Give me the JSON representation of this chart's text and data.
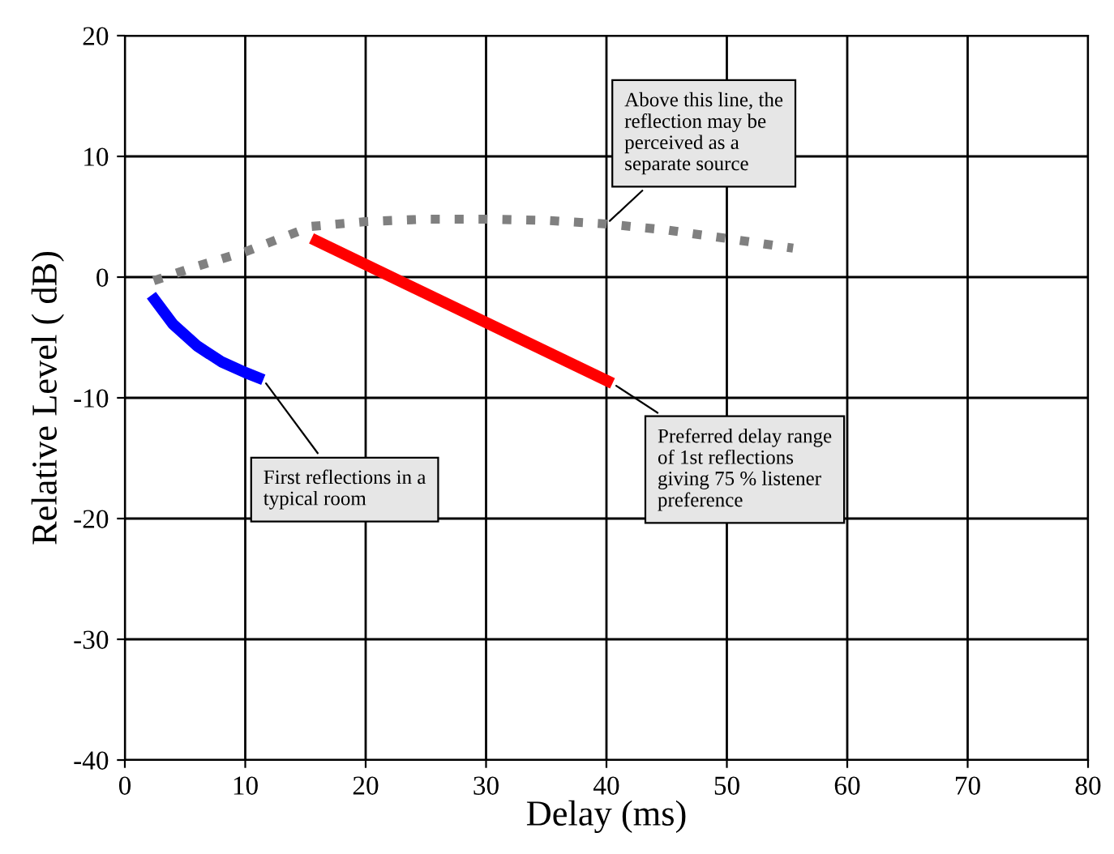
{
  "chart_data": {
    "type": "line",
    "xlabel": "Delay (ms)",
    "ylabel": "Relative Level ( dB)",
    "xlim": [
      0,
      80
    ],
    "ylim": [
      -40,
      20
    ],
    "xticks": [
      0,
      10,
      20,
      30,
      40,
      50,
      60,
      70,
      80
    ],
    "yticks": [
      -40,
      -30,
      -20,
      -10,
      0,
      10,
      20
    ],
    "grid": true,
    "marker": "none",
    "series": [
      {
        "color": "#808080",
        "line_style": "dotted",
        "x": [
          2.4,
          6,
          10,
          15.5,
          20,
          25,
          30,
          35,
          40,
          45,
          50,
          55.5
        ],
        "values": [
          -0.3,
          0.9,
          2.1,
          4.2,
          4.6,
          4.8,
          4.8,
          4.7,
          4.4,
          3.9,
          3.2,
          2.4
        ]
      },
      {
        "color": "#0000ff",
        "line_style": "solid",
        "x": [
          2.2,
          4,
          6,
          8,
          10,
          11.5
        ],
        "values": [
          -1.5,
          -3.9,
          -5.7,
          -7,
          -7.9,
          -8.5
        ]
      },
      {
        "color": "#ff0000",
        "line_style": "solid",
        "x": [
          15.5,
          40.5
        ],
        "values": [
          3.2,
          -8.8
        ]
      }
    ],
    "annotations": [
      {
        "text": "Above this line, the\nreflection may be\nperceived as a\nseparate source",
        "x": 40,
        "y": 4.4
      },
      {
        "text": "First reflections in a\ntypical room",
        "x": 11.5,
        "y": -8.5
      },
      {
        "text": "Preferred delay range\nof 1st reflections\ngiving 75 % listener\npreference",
        "x": 40.5,
        "y": -8.8
      }
    ]
  }
}
